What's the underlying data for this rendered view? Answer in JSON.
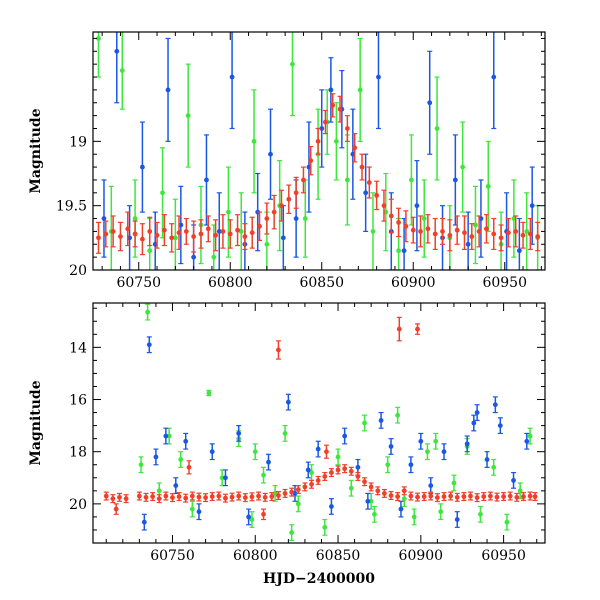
{
  "chart_data": [
    {
      "type": "scatter",
      "panel": "top",
      "title": "",
      "xlabel": "",
      "ylabel": "Magnitude",
      "xlim": [
        60725,
        60972
      ],
      "ylim": [
        18.15,
        20.0
      ],
      "y_inverted": true,
      "grid": false,
      "x_ticks": [
        60750,
        60800,
        60850,
        60900,
        60950
      ],
      "x_tick_labels": [
        "60750",
        "60800",
        "60850",
        "60900",
        "60950"
      ],
      "y_ticks": [
        19.0,
        19.5,
        20.0
      ],
      "y_tick_labels": [
        "19",
        "19.5",
        "20"
      ],
      "series": [
        {
          "name": "green band",
          "color": "#3ee63e",
          "x": [
            60728,
            60735,
            60741,
            60748,
            60756,
            60763,
            60770,
            60777,
            60784,
            60791,
            60799,
            60806,
            60813,
            60820,
            60827,
            60834,
            60841,
            60848,
            60853,
            60858,
            60864,
            60871,
            60878,
            60885,
            60892,
            60899,
            60906,
            60913,
            60920,
            60927,
            60934,
            60941,
            60948,
            60955,
            60962,
            60968
          ],
          "y": [
            18.2,
            19.7,
            18.45,
            19.6,
            19.85,
            19.4,
            19.75,
            18.8,
            19.65,
            19.9,
            19.55,
            19.7,
            19.0,
            19.8,
            19.5,
            18.4,
            19.6,
            19.1,
            18.85,
            19.0,
            19.3,
            18.6,
            19.7,
            19.55,
            19.85,
            19.3,
            19.6,
            18.9,
            19.75,
            19.2,
            19.65,
            19.35,
            19.8,
            19.6,
            19.7,
            19.75
          ],
          "err": [
            0.3,
            0.35,
            0.3,
            0.3,
            0.25,
            0.35,
            0.3,
            0.4,
            0.3,
            0.25,
            0.35,
            0.3,
            0.4,
            0.25,
            0.35,
            0.4,
            0.3,
            0.35,
            0.25,
            0.3,
            0.35,
            0.4,
            0.3,
            0.3,
            0.25,
            0.35,
            0.3,
            0.4,
            0.25,
            0.35,
            0.3,
            0.35,
            0.25,
            0.3,
            0.3,
            0.25
          ]
        },
        {
          "name": "blue band",
          "color": "#1a57e6",
          "x": [
            60731,
            60738,
            60745,
            60752,
            60759,
            60766,
            60773,
            60780,
            60787,
            60794,
            60801,
            60808,
            60815,
            60822,
            60829,
            60836,
            60843,
            60850,
            60855,
            60861,
            60867,
            60874,
            60881,
            60888,
            60895,
            60902,
            60909,
            60916,
            60923,
            60930,
            60937,
            60944,
            60951,
            60958,
            60965
          ],
          "y": [
            19.6,
            18.3,
            19.75,
            19.2,
            19.8,
            18.6,
            19.65,
            19.9,
            19.3,
            19.7,
            18.5,
            19.8,
            19.55,
            19.1,
            19.75,
            19.6,
            19.2,
            18.9,
            18.6,
            18.75,
            19.1,
            19.4,
            18.5,
            19.7,
            19.85,
            19.5,
            18.7,
            19.75,
            19.3,
            19.8,
            19.6,
            18.5,
            19.7,
            19.85,
            19.5
          ],
          "err": [
            0.3,
            0.4,
            0.25,
            0.35,
            0.25,
            0.4,
            0.3,
            0.25,
            0.35,
            0.3,
            0.4,
            0.25,
            0.3,
            0.35,
            0.25,
            0.3,
            0.35,
            0.3,
            0.25,
            0.3,
            0.35,
            0.3,
            0.4,
            0.3,
            0.25,
            0.35,
            0.4,
            0.25,
            0.35,
            0.25,
            0.3,
            0.4,
            0.3,
            0.25,
            0.3
          ]
        },
        {
          "name": "red band",
          "color": "#f0402a",
          "x": [
            60728,
            60732,
            60736,
            60740,
            60744,
            60748,
            60752,
            60756,
            60760,
            60764,
            60768,
            60772,
            60776,
            60780,
            60784,
            60788,
            60792,
            60796,
            60800,
            60804,
            60808,
            60812,
            60816,
            60820,
            60824,
            60828,
            60832,
            60836,
            60840,
            60844,
            60848,
            60852,
            60856,
            60860,
            60864,
            60868,
            60872,
            60876,
            60880,
            60884,
            60888,
            60892,
            60896,
            60900,
            60904,
            60908,
            60912,
            60916,
            60920,
            60924,
            60928,
            60932,
            60936,
            60940,
            60944,
            60948,
            60952,
            60956,
            60960,
            60964,
            60968
          ],
          "y": [
            19.75,
            19.72,
            19.7,
            19.74,
            19.68,
            19.72,
            19.76,
            19.7,
            19.73,
            19.69,
            19.75,
            19.71,
            19.7,
            19.74,
            19.72,
            19.68,
            19.73,
            19.7,
            19.72,
            19.69,
            19.74,
            19.71,
            19.66,
            19.6,
            19.55,
            19.5,
            19.45,
            19.4,
            19.3,
            19.15,
            19.0,
            18.85,
            18.72,
            18.75,
            18.9,
            19.05,
            19.2,
            19.32,
            19.42,
            19.5,
            19.58,
            19.63,
            19.66,
            19.69,
            19.7,
            19.68,
            19.72,
            19.7,
            19.73,
            19.69,
            19.71,
            19.74,
            19.7,
            19.68,
            19.72,
            19.75,
            19.71,
            19.7,
            19.73,
            19.72,
            19.74
          ],
          "err": [
            0.12,
            0.1,
            0.12,
            0.11,
            0.13,
            0.1,
            0.12,
            0.11,
            0.1,
            0.12,
            0.11,
            0.13,
            0.1,
            0.12,
            0.11,
            0.1,
            0.12,
            0.13,
            0.11,
            0.12,
            0.1,
            0.12,
            0.11,
            0.12,
            0.13,
            0.12,
            0.11,
            0.12,
            0.1,
            0.11,
            0.1,
            0.09,
            0.09,
            0.1,
            0.1,
            0.11,
            0.1,
            0.12,
            0.11,
            0.12,
            0.13,
            0.11,
            0.12,
            0.1,
            0.12,
            0.11,
            0.12,
            0.1,
            0.12,
            0.11,
            0.13,
            0.1,
            0.12,
            0.11,
            0.12,
            0.1,
            0.11,
            0.12,
            0.1,
            0.12,
            0.11
          ]
        }
      ]
    },
    {
      "type": "scatter",
      "panel": "bottom",
      "title": "",
      "xlabel": "HJD−2400000",
      "ylabel": "Magnitude",
      "xlim": [
        60702,
        60975
      ],
      "ylim": [
        12.3,
        21.5
      ],
      "y_inverted": true,
      "grid": false,
      "x_ticks": [
        60750,
        60800,
        60850,
        60900,
        60950
      ],
      "x_tick_labels": [
        "60750",
        "60800",
        "60850",
        "60900",
        "60950"
      ],
      "y_ticks": [
        14,
        16,
        18,
        20
      ],
      "y_tick_labels": [
        "14",
        "16",
        "18",
        "20"
      ],
      "series": [
        {
          "name": "green band",
          "color": "#3ee63e",
          "x": [
            60735,
            60772,
            60731,
            60742,
            60748,
            60755,
            60762,
            60780,
            60790,
            60798,
            60805,
            60812,
            60818,
            60826,
            60834,
            60842,
            60850,
            60858,
            60866,
            60872,
            60880,
            60886,
            60890,
            60896,
            60904,
            60912,
            60920,
            60928,
            60936,
            60944,
            60952,
            60960,
            60966,
            60800,
            60822,
            60870,
            60909
          ],
          "y": [
            12.65,
            15.75,
            18.5,
            19.5,
            17.4,
            18.3,
            20.2,
            19.0,
            17.5,
            20.6,
            18.9,
            19.6,
            17.3,
            20.0,
            18.8,
            20.9,
            18.2,
            19.4,
            16.9,
            20.4,
            18.5,
            16.6,
            19.8,
            20.5,
            18.0,
            20.3,
            19.2,
            17.8,
            20.4,
            18.6,
            20.7,
            19.5,
            17.4,
            18.0,
            21.1,
            19.9,
            17.6
          ],
          "err": [
            0.3,
            0.1,
            0.3,
            0.3,
            0.3,
            0.3,
            0.3,
            0.3,
            0.3,
            0.3,
            0.3,
            0.3,
            0.3,
            0.3,
            0.3,
            0.3,
            0.3,
            0.3,
            0.3,
            0.3,
            0.3,
            0.3,
            0.3,
            0.3,
            0.3,
            0.3,
            0.3,
            0.3,
            0.3,
            0.3,
            0.3,
            0.3,
            0.3,
            0.3,
            0.3,
            0.3,
            0.3
          ]
        },
        {
          "name": "blue band",
          "color": "#1a57e6",
          "x": [
            60736,
            60733,
            60740,
            60746,
            60752,
            60758,
            60766,
            60774,
            60782,
            60790,
            60796,
            60808,
            60820,
            60824,
            60832,
            60838,
            60846,
            60854,
            60862,
            60868,
            60876,
            60882,
            60888,
            60894,
            60900,
            60906,
            60914,
            60922,
            60928,
            60934,
            60940,
            60948,
            60956,
            60964,
            60932,
            60945
          ],
          "y": [
            13.9,
            20.7,
            18.2,
            17.4,
            19.3,
            17.6,
            20.3,
            18.0,
            19.0,
            17.3,
            20.5,
            18.4,
            16.1,
            19.6,
            18.7,
            17.9,
            20.1,
            17.4,
            18.6,
            19.9,
            16.8,
            17.8,
            20.2,
            18.5,
            17.6,
            19.3,
            18.0,
            20.6,
            17.7,
            16.5,
            18.3,
            17.0,
            19.1,
            17.6,
            16.9,
            16.2
          ],
          "err": [
            0.3,
            0.3,
            0.3,
            0.3,
            0.3,
            0.3,
            0.3,
            0.3,
            0.3,
            0.3,
            0.3,
            0.3,
            0.3,
            0.3,
            0.3,
            0.3,
            0.3,
            0.3,
            0.3,
            0.3,
            0.3,
            0.3,
            0.3,
            0.3,
            0.3,
            0.3,
            0.3,
            0.3,
            0.3,
            0.3,
            0.3,
            0.3,
            0.3,
            0.3,
            0.3,
            0.3
          ]
        },
        {
          "name": "red band",
          "color": "#f0402a",
          "x": [
            60710,
            60714,
            60718,
            60722,
            60730,
            60734,
            60738,
            60742,
            60746,
            60750,
            60754,
            60758,
            60762,
            60766,
            60770,
            60774,
            60778,
            60782,
            60786,
            60790,
            60794,
            60798,
            60802,
            60806,
            60810,
            60814,
            60818,
            60822,
            60826,
            60830,
            60834,
            60838,
            60842,
            60846,
            60850,
            60854,
            60858,
            60862,
            60866,
            60870,
            60874,
            60878,
            60882,
            60886,
            60890,
            60894,
            60898,
            60902,
            60906,
            60910,
            60914,
            60918,
            60922,
            60926,
            60930,
            60934,
            60938,
            60942,
            60946,
            60950,
            60954,
            60958,
            60962,
            60966,
            60969,
            60814,
            60887,
            60898,
            60716,
            60760,
            60805,
            60843
          ],
          "y": [
            19.7,
            19.8,
            19.75,
            19.8,
            19.7,
            19.75,
            19.72,
            19.8,
            19.7,
            19.76,
            19.72,
            19.78,
            19.7,
            19.74,
            19.76,
            19.72,
            19.7,
            19.78,
            19.74,
            19.7,
            19.76,
            19.73,
            19.7,
            19.75,
            19.72,
            19.68,
            19.6,
            19.55,
            19.45,
            19.35,
            19.25,
            19.1,
            18.95,
            18.8,
            18.7,
            18.65,
            18.75,
            18.95,
            19.15,
            19.35,
            19.5,
            19.6,
            19.68,
            19.72,
            19.5,
            19.7,
            19.74,
            19.72,
            19.7,
            19.76,
            19.72,
            19.7,
            19.75,
            19.72,
            19.7,
            19.76,
            19.72,
            19.7,
            19.74,
            19.72,
            19.7,
            19.75,
            19.72,
            19.7,
            19.72,
            14.1,
            13.3,
            13.3,
            20.2,
            18.6,
            20.4,
            18.0
          ],
          "err": [
            0.15,
            0.15,
            0.15,
            0.15,
            0.15,
            0.15,
            0.15,
            0.15,
            0.15,
            0.15,
            0.15,
            0.15,
            0.15,
            0.15,
            0.15,
            0.15,
            0.15,
            0.15,
            0.15,
            0.15,
            0.15,
            0.15,
            0.15,
            0.15,
            0.15,
            0.15,
            0.15,
            0.15,
            0.15,
            0.15,
            0.15,
            0.15,
            0.15,
            0.15,
            0.15,
            0.15,
            0.15,
            0.15,
            0.15,
            0.15,
            0.15,
            0.15,
            0.15,
            0.15,
            0.15,
            0.15,
            0.15,
            0.15,
            0.15,
            0.15,
            0.15,
            0.15,
            0.15,
            0.15,
            0.15,
            0.15,
            0.15,
            0.15,
            0.15,
            0.15,
            0.15,
            0.15,
            0.15,
            0.15,
            0.15,
            0.35,
            0.45,
            0.2,
            0.2,
            0.25,
            0.2,
            0.25
          ]
        }
      ]
    }
  ]
}
